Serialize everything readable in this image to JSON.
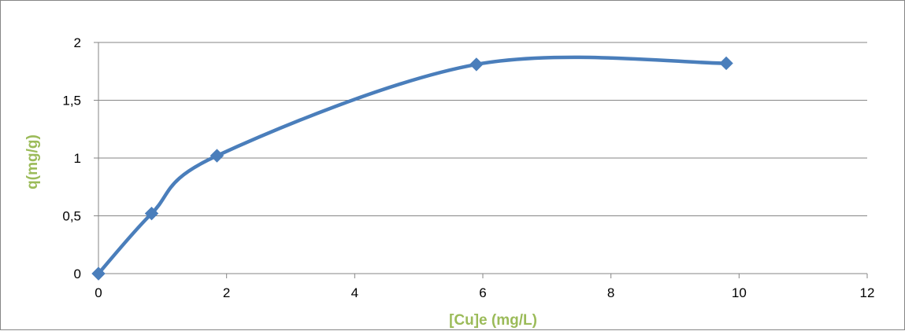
{
  "chart_data": {
    "type": "line",
    "smooth": true,
    "marker": "diamond",
    "xlabel": "[Cu]e (mg/L)",
    "ylabel": "q(mg/g)",
    "xlim": [
      0,
      12
    ],
    "ylim": [
      0,
      2
    ],
    "xticks": [
      0,
      2,
      4,
      6,
      8,
      10,
      12
    ],
    "yticks": [
      0,
      0.5,
      1,
      1.5,
      2
    ],
    "xtick_labels": [
      "0",
      "2",
      "4",
      "6",
      "8",
      "10",
      "12"
    ],
    "ytick_labels": [
      "0",
      "0,5",
      "1",
      "1,5",
      "2"
    ],
    "grid": "horizontal",
    "legend": "none",
    "series": [
      {
        "x": [
          0,
          0.83,
          1.85,
          5.9,
          9.8
        ],
        "y": [
          0,
          0.52,
          1.02,
          1.81,
          1.82
        ]
      }
    ],
    "colors": {
      "line": "#4A7EBB",
      "marker": "#4A7EBB",
      "axis_title": "#9BBB59",
      "grid": "#868686"
    }
  }
}
